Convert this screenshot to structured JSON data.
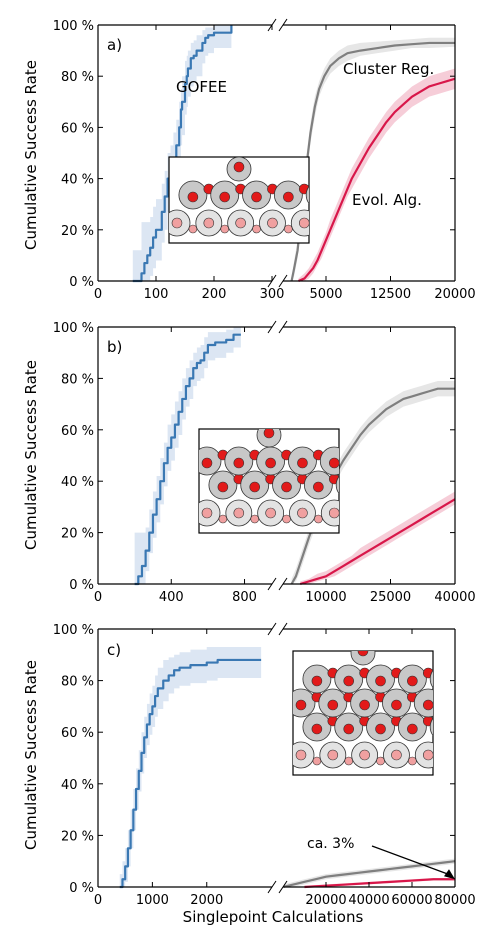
{
  "colors": {
    "gofee": "#3a78b3",
    "gofee_band": "#dce6f3",
    "cluster": "#7f7f7f",
    "cluster_band": "#e6e6e6",
    "evol": "#d8174a",
    "evol_band": "#f6cdd8",
    "atom_large": "#c8c8c8",
    "atom_small_outer": "#e3e3e3",
    "atom_red": "#e21a1a",
    "atom_pink": "#f0a0a0"
  },
  "figure": {
    "ylabel": "Cumulative Success Rate",
    "xlabel": "Singlepoint Calculations"
  },
  "chart_data": [
    {
      "type": "line",
      "panel_label": "a)",
      "yticks": [
        "0 %",
        "20 %",
        "40 %",
        "60 %",
        "80 %",
        "100 %"
      ],
      "ylim": [
        0,
        100
      ],
      "left_axis": {
        "xlim": [
          0,
          300
        ],
        "ticks": [
          0,
          100,
          200,
          300
        ],
        "tick_labels": [
          "0",
          "100",
          "200",
          "300"
        ]
      },
      "right_axis": {
        "xlim": [
          0,
          20000
        ],
        "ticks": [
          5000,
          12500,
          20000
        ],
        "tick_labels": [
          "5000",
          "12500",
          "20000"
        ]
      },
      "series": [
        {
          "name": "GOFEE",
          "axis": "left",
          "style": "step",
          "x": [
            60,
            75,
            80,
            85,
            90,
            95,
            100,
            110,
            115,
            120,
            125,
            130,
            135,
            140,
            143,
            145,
            150,
            153,
            155,
            160,
            165,
            170,
            180,
            185,
            190,
            200,
            210,
            230,
            230
          ],
          "y": [
            0,
            3,
            7,
            10,
            13,
            17,
            20,
            27,
            33,
            40,
            43,
            47,
            53,
            60,
            67,
            70,
            77,
            80,
            83,
            87,
            88,
            90,
            93,
            95,
            96,
            97,
            97,
            97,
            100
          ],
          "band_lo": [
            0,
            0,
            0,
            0,
            2,
            5,
            8,
            15,
            20,
            27,
            30,
            33,
            40,
            47,
            53,
            57,
            65,
            68,
            72,
            76,
            78,
            80,
            85,
            88,
            89,
            91,
            91,
            92,
            98
          ],
          "band_hi": [
            12,
            23,
            23,
            23,
            25,
            29,
            32,
            38,
            43,
            50,
            53,
            58,
            63,
            70,
            75,
            80,
            86,
            88,
            90,
            93,
            94,
            96,
            98,
            99,
            99,
            100,
            100,
            100,
            100
          ]
        },
        {
          "name": "Cluster Reg.",
          "axis": "right",
          "style": "smooth",
          "x": [
            1000,
            1300,
            1700,
            2000,
            2400,
            2800,
            3200,
            3700,
            4200,
            4800,
            5500,
            6500,
            7500,
            9000,
            11000,
            13000,
            15000,
            17000,
            20000
          ],
          "y": [
            0,
            5,
            12,
            22,
            34,
            47,
            58,
            68,
            75,
            80,
            84,
            87,
            89,
            90,
            91,
            92,
            92.5,
            93,
            93
          ],
          "band_lo": [
            0,
            2,
            9,
            18,
            30,
            43,
            54,
            64,
            72,
            77,
            81,
            84,
            86,
            88,
            89,
            90,
            91,
            91,
            91.5
          ],
          "band_hi": [
            1,
            8,
            16,
            26,
            38,
            51,
            62,
            72,
            78,
            83,
            87,
            90,
            92,
            93,
            93.5,
            94,
            94.5,
            95,
            95
          ]
        },
        {
          "name": "Evol. Alg.",
          "axis": "right",
          "style": "smooth",
          "x": [
            1800,
            2500,
            3000,
            3500,
            4000,
            4500,
            5000,
            5500,
            6000,
            6500,
            7000,
            7500,
            8000,
            9000,
            10000,
            11000,
            12000,
            13000,
            14000,
            15000,
            16000,
            17000,
            18000,
            19000,
            20000
          ],
          "y": [
            0,
            1,
            3,
            5,
            8,
            12,
            16,
            20,
            24,
            28,
            32,
            36,
            40,
            46,
            52,
            57,
            62,
            66,
            69,
            72,
            74,
            76,
            77,
            78,
            79
          ],
          "band_lo": [
            0,
            0,
            1,
            3,
            6,
            9,
            13,
            17,
            21,
            25,
            29,
            33,
            36,
            42,
            48,
            53,
            58,
            62,
            65,
            68,
            70,
            72,
            73,
            74,
            75
          ],
          "band_hi": [
            1,
            3,
            5,
            8,
            11,
            15,
            19,
            24,
            28,
            32,
            36,
            40,
            44,
            50,
            56,
            61,
            66,
            70,
            73,
            76,
            78,
            80,
            81,
            82,
            83
          ]
        }
      ]
    },
    {
      "type": "line",
      "panel_label": "b)",
      "yticks": [
        "0 %",
        "20 %",
        "40 %",
        "60 %",
        "80 %",
        "100 %"
      ],
      "ylim": [
        0,
        100
      ],
      "left_axis": {
        "xlim": [
          0,
          950
        ],
        "ticks": [
          0,
          400,
          800
        ],
        "tick_labels": [
          "0",
          "400",
          "800"
        ]
      },
      "right_axis": {
        "xlim": [
          0,
          40000
        ],
        "ticks": [
          10000,
          25000,
          40000
        ],
        "tick_labels": [
          "10000",
          "25000",
          "40000"
        ]
      },
      "series": [
        {
          "name": "GOFEE",
          "axis": "left",
          "style": "step",
          "x": [
            200,
            220,
            240,
            260,
            280,
            300,
            320,
            340,
            360,
            380,
            400,
            420,
            440,
            460,
            480,
            500,
            520,
            540,
            560,
            580,
            600,
            640,
            700,
            740,
            780
          ],
          "y": [
            0,
            3,
            7,
            13,
            20,
            27,
            33,
            40,
            47,
            53,
            57,
            62,
            67,
            72,
            77,
            80,
            84,
            86,
            87,
            90,
            93,
            94,
            95,
            97,
            97
          ],
          "band_lo": [
            0,
            0,
            0,
            5,
            12,
            18,
            24,
            31,
            38,
            44,
            48,
            53,
            58,
            64,
            69,
            72,
            77,
            79,
            80,
            84,
            87,
            88,
            90,
            92,
            92
          ],
          "band_hi": [
            20,
            20,
            20,
            22,
            29,
            36,
            42,
            49,
            55,
            62,
            66,
            71,
            75,
            80,
            84,
            87,
            90,
            92,
            93,
            96,
            98,
            98,
            99,
            100,
            100
          ]
        },
        {
          "name": "Cluster Reg.",
          "axis": "right",
          "style": "smooth",
          "x": [
            2000,
            3000,
            4000,
            5000,
            6000,
            8000,
            10000,
            12000,
            14000,
            16000,
            18000,
            20000,
            22000,
            24000,
            26000,
            28000,
            30000,
            32000,
            34000,
            36000,
            38000,
            40000
          ],
          "y": [
            0,
            3,
            8,
            13,
            18,
            27,
            35,
            42,
            48,
            53,
            58,
            62,
            65,
            68,
            70,
            72,
            73,
            74,
            75,
            76,
            76,
            76
          ],
          "band_lo": [
            0,
            1,
            5,
            10,
            15,
            24,
            32,
            39,
            45,
            50,
            55,
            59,
            62,
            65,
            67,
            69,
            70,
            71,
            72,
            73,
            73,
            73
          ],
          "band_hi": [
            2,
            6,
            11,
            16,
            21,
            30,
            38,
            45,
            51,
            56,
            61,
            65,
            68,
            71,
            73,
            75,
            76,
            77,
            78,
            79,
            79,
            79
          ]
        },
        {
          "name": "Evol. Alg.",
          "axis": "right",
          "style": "smooth",
          "x": [
            4000,
            6000,
            8000,
            10000,
            12000,
            14000,
            16000,
            18000,
            20000,
            22000,
            24000,
            26000,
            28000,
            30000,
            32000,
            34000,
            36000,
            38000,
            40000
          ],
          "y": [
            0,
            1,
            2,
            3,
            5,
            7,
            9,
            11,
            13,
            15,
            17,
            19,
            21,
            23,
            25,
            27,
            29,
            31,
            33
          ],
          "band_lo": [
            0,
            0,
            1,
            2,
            3,
            5,
            7,
            9,
            11,
            13,
            15,
            17,
            19,
            21,
            23,
            25,
            27,
            29,
            31
          ],
          "band_hi": [
            1,
            2,
            4,
            5,
            7,
            9,
            11,
            14,
            16,
            18,
            20,
            22,
            24,
            26,
            28,
            30,
            32,
            34,
            36
          ]
        }
      ]
    },
    {
      "type": "line",
      "panel_label": "c)",
      "yticks": [
        "0 %",
        "20 %",
        "40 %",
        "60 %",
        "80 %",
        "100 %"
      ],
      "ylim": [
        0,
        100
      ],
      "left_axis": {
        "xlim": [
          0,
          3200
        ],
        "ticks": [
          0,
          1000,
          2000
        ],
        "tick_labels": [
          "0",
          "1000",
          "2000"
        ]
      },
      "right_axis": {
        "xlim": [
          0,
          80000
        ],
        "ticks": [
          20000,
          40000,
          60000,
          80000
        ],
        "tick_labels": [
          "20000",
          "40000",
          "60000",
          "80000"
        ]
      },
      "series": [
        {
          "name": "GOFEE",
          "axis": "left",
          "style": "step",
          "x": [
            400,
            450,
            500,
            550,
            600,
            650,
            700,
            750,
            800,
            850,
            900,
            950,
            1000,
            1050,
            1100,
            1200,
            1300,
            1400,
            1500,
            1700,
            1900,
            2000,
            2200,
            2500,
            3000
          ],
          "y": [
            0,
            3,
            8,
            15,
            22,
            30,
            38,
            45,
            52,
            58,
            63,
            67,
            70,
            74,
            77,
            80,
            82,
            84,
            85,
            86,
            86,
            87,
            88,
            88,
            88
          ],
          "band_lo": [
            0,
            0,
            2,
            8,
            15,
            22,
            30,
            37,
            44,
            50,
            55,
            59,
            62,
            66,
            69,
            72,
            75,
            77,
            78,
            79,
            79,
            80,
            81,
            81,
            81
          ],
          "band_hi": [
            5,
            10,
            15,
            22,
            30,
            38,
            46,
            53,
            60,
            66,
            71,
            75,
            78,
            82,
            85,
            88,
            89,
            90,
            91,
            92,
            92,
            93,
            93,
            93,
            93
          ]
        },
        {
          "name": "Cluster Reg.",
          "axis": "right",
          "style": "smooth",
          "x": [
            0,
            5000,
            10000,
            15000,
            20000,
            25000,
            30000,
            35000,
            40000,
            45000,
            50000,
            55000,
            60000,
            65000,
            70000,
            75000,
            80000
          ],
          "y": [
            0,
            1,
            2,
            3,
            4,
            4.5,
            5,
            5.5,
            6,
            6.5,
            7,
            7.5,
            8,
            8.5,
            9,
            9.5,
            10
          ],
          "band_lo": [
            0,
            0,
            1,
            2,
            3,
            3.5,
            4,
            4.5,
            5,
            5.5,
            6,
            6.5,
            7,
            7.5,
            8,
            8.5,
            9
          ],
          "band_hi": [
            1,
            2,
            3,
            4,
            5,
            5.5,
            6,
            6.5,
            7,
            7.5,
            8,
            8.5,
            9,
            9.5,
            10,
            10.5,
            11
          ]
        },
        {
          "name": "Evol. Alg.",
          "axis": "right",
          "style": "smooth",
          "x": [
            10000,
            20000,
            30000,
            40000,
            50000,
            60000,
            70000,
            80000
          ],
          "y": [
            0,
            0.5,
            1,
            1.5,
            2,
            2.5,
            3,
            3
          ],
          "band_lo": [
            0,
            0,
            0.5,
            1,
            1.5,
            2,
            2.5,
            2.5
          ],
          "band_hi": [
            0.5,
            1,
            1.5,
            2,
            2.5,
            3,
            3.5,
            3.5
          ]
        }
      ],
      "annotation": {
        "text": "ca. 3%",
        "x": 80000,
        "y": 3
      }
    }
  ]
}
